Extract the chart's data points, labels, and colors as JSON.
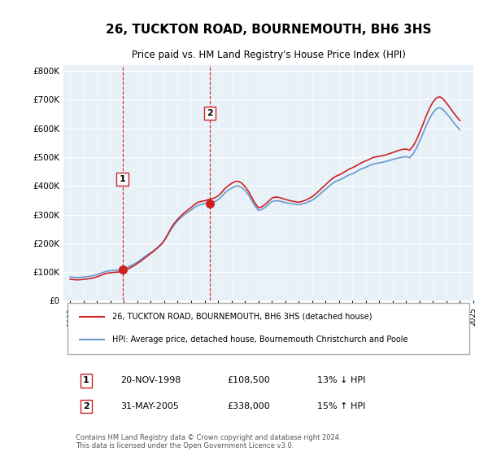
{
  "title": "26, TUCKTON ROAD, BOURNEMOUTH, BH6 3HS",
  "subtitle": "Price paid vs. HM Land Registry's House Price Index (HPI)",
  "legend_line1": "26, TUCKTON ROAD, BOURNEMOUTH, BH6 3HS (detached house)",
  "legend_line2": "HPI: Average price, detached house, Bournemouth Christchurch and Poole",
  "transaction1_label": "1",
  "transaction1_date": "20-NOV-1998",
  "transaction1_price": "£108,500",
  "transaction1_hpi": "13% ↓ HPI",
  "transaction1_year": 1998.89,
  "transaction1_value": 108500,
  "transaction2_label": "2",
  "transaction2_date": "31-MAY-2005",
  "transaction2_price": "£338,000",
  "transaction2_hpi": "15% ↑ HPI",
  "transaction2_year": 2005.41,
  "transaction2_value": 338000,
  "footer": "Contains HM Land Registry data © Crown copyright and database right 2024.\nThis data is licensed under the Open Government Licence v3.0.",
  "hpi_color": "#6699cc",
  "price_color": "#cc2222",
  "vline_color": "#cc2222",
  "background_color": "#ffffff",
  "plot_bg_color": "#e8f0f8",
  "ylim": [
    0,
    820000
  ],
  "yticks": [
    0,
    100000,
    200000,
    300000,
    400000,
    500000,
    600000,
    700000,
    800000
  ],
  "ylabel_format": "£{0}K",
  "hpi_data": {
    "years": [
      1995.0,
      1995.25,
      1995.5,
      1995.75,
      1996.0,
      1996.25,
      1996.5,
      1996.75,
      1997.0,
      1997.25,
      1997.5,
      1997.75,
      1998.0,
      1998.25,
      1998.5,
      1998.75,
      1999.0,
      1999.25,
      1999.5,
      1999.75,
      2000.0,
      2000.25,
      2000.5,
      2000.75,
      2001.0,
      2001.25,
      2001.5,
      2001.75,
      2002.0,
      2002.25,
      2002.5,
      2002.75,
      2003.0,
      2003.25,
      2003.5,
      2003.75,
      2004.0,
      2004.25,
      2004.5,
      2004.75,
      2005.0,
      2005.25,
      2005.5,
      2005.75,
      2006.0,
      2006.25,
      2006.5,
      2006.75,
      2007.0,
      2007.25,
      2007.5,
      2007.75,
      2008.0,
      2008.25,
      2008.5,
      2008.75,
      2009.0,
      2009.25,
      2009.5,
      2009.75,
      2010.0,
      2010.25,
      2010.5,
      2010.75,
      2011.0,
      2011.25,
      2011.5,
      2011.75,
      2012.0,
      2012.25,
      2012.5,
      2012.75,
      2013.0,
      2013.25,
      2013.5,
      2013.75,
      2014.0,
      2014.25,
      2014.5,
      2014.75,
      2015.0,
      2015.25,
      2015.5,
      2015.75,
      2016.0,
      2016.25,
      2016.5,
      2016.75,
      2017.0,
      2017.25,
      2017.5,
      2017.75,
      2018.0,
      2018.25,
      2018.5,
      2018.75,
      2019.0,
      2019.25,
      2019.5,
      2019.75,
      2020.0,
      2020.25,
      2020.5,
      2020.75,
      2021.0,
      2021.25,
      2021.5,
      2021.75,
      2022.0,
      2022.25,
      2022.5,
      2022.75,
      2023.0,
      2023.25,
      2023.5,
      2023.75,
      2024.0
    ],
    "values": [
      83000,
      82000,
      81000,
      81500,
      83000,
      84000,
      86000,
      88000,
      92000,
      96000,
      100000,
      103000,
      105000,
      106000,
      107000,
      108000,
      110000,
      116000,
      122000,
      128000,
      135000,
      143000,
      152000,
      160000,
      168000,
      176000,
      186000,
      196000,
      210000,
      228000,
      248000,
      265000,
      278000,
      290000,
      300000,
      308000,
      316000,
      325000,
      332000,
      336000,
      338000,
      340000,
      342000,
      345000,
      352000,
      362000,
      375000,
      385000,
      392000,
      398000,
      400000,
      395000,
      385000,
      370000,
      350000,
      330000,
      315000,
      318000,
      325000,
      335000,
      345000,
      348000,
      348000,
      345000,
      342000,
      340000,
      338000,
      336000,
      335000,
      337000,
      340000,
      345000,
      350000,
      358000,
      368000,
      378000,
      388000,
      398000,
      408000,
      415000,
      420000,
      425000,
      432000,
      438000,
      442000,
      448000,
      455000,
      460000,
      465000,
      470000,
      475000,
      478000,
      480000,
      482000,
      485000,
      488000,
      492000,
      495000,
      498000,
      500000,
      502000,
      498000,
      510000,
      530000,
      555000,
      582000,
      610000,
      635000,
      655000,
      668000,
      672000,
      665000,
      652000,
      638000,
      622000,
      608000,
      595000
    ]
  },
  "price_data": {
    "years": [
      1995.0,
      1995.25,
      1995.5,
      1995.75,
      1996.0,
      1996.25,
      1996.5,
      1996.75,
      1997.0,
      1997.25,
      1997.5,
      1997.75,
      1998.0,
      1998.25,
      1998.5,
      1998.75,
      1999.0,
      1999.25,
      1999.5,
      1999.75,
      2000.0,
      2000.25,
      2000.5,
      2000.75,
      2001.0,
      2001.25,
      2001.5,
      2001.75,
      2002.0,
      2002.25,
      2002.5,
      2002.75,
      2003.0,
      2003.25,
      2003.5,
      2003.75,
      2004.0,
      2004.25,
      2004.5,
      2004.75,
      2005.0,
      2005.25,
      2005.5,
      2005.75,
      2006.0,
      2006.25,
      2006.5,
      2006.75,
      2007.0,
      2007.25,
      2007.5,
      2007.75,
      2008.0,
      2008.25,
      2008.5,
      2008.75,
      2009.0,
      2009.25,
      2009.5,
      2009.75,
      2010.0,
      2010.25,
      2010.5,
      2010.75,
      2011.0,
      2011.25,
      2011.5,
      2011.75,
      2012.0,
      2012.25,
      2012.5,
      2012.75,
      2013.0,
      2013.25,
      2013.5,
      2013.75,
      2014.0,
      2014.25,
      2014.5,
      2014.75,
      2015.0,
      2015.25,
      2015.5,
      2015.75,
      2016.0,
      2016.25,
      2016.5,
      2016.75,
      2017.0,
      2017.25,
      2017.5,
      2017.75,
      2018.0,
      2018.25,
      2018.5,
      2018.75,
      2019.0,
      2019.25,
      2019.5,
      2019.75,
      2020.0,
      2020.25,
      2020.5,
      2020.75,
      2021.0,
      2021.25,
      2021.5,
      2021.75,
      2022.0,
      2022.25,
      2022.5,
      2022.75,
      2023.0,
      2023.25,
      2023.5,
      2023.75,
      2024.0
    ],
    "values": [
      75000,
      74000,
      73000,
      73500,
      75000,
      76000,
      78000,
      80000,
      84000,
      88000,
      93000,
      96000,
      98000,
      99000,
      100000,
      101000,
      103000,
      109000,
      116000,
      122000,
      130000,
      138000,
      147000,
      156000,
      165000,
      174000,
      184000,
      195000,
      210000,
      230000,
      252000,
      270000,
      284000,
      296000,
      307000,
      316000,
      325000,
      335000,
      343000,
      346000,
      348000,
      352000,
      355000,
      358000,
      365000,
      376000,
      390000,
      400000,
      408000,
      415000,
      416000,
      410000,
      398000,
      382000,
      361000,
      340000,
      324000,
      327000,
      335000,
      346000,
      357000,
      361000,
      360000,
      357000,
      353000,
      350000,
      347000,
      345000,
      343000,
      346000,
      350000,
      356000,
      362000,
      371000,
      382000,
      393000,
      404000,
      415000,
      425000,
      433000,
      438000,
      444000,
      451000,
      458000,
      463000,
      469000,
      476000,
      482000,
      487000,
      492000,
      498000,
      501000,
      503000,
      505000,
      508000,
      512000,
      516000,
      520000,
      524000,
      527000,
      528000,
      524000,
      537000,
      558000,
      585000,
      614000,
      644000,
      671000,
      692000,
      706000,
      710000,
      702000,
      688000,
      673000,
      656000,
      641000,
      627000
    ]
  }
}
